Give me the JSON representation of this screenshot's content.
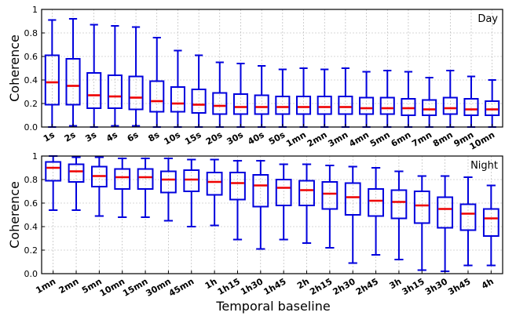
{
  "xlabel": "Temporal baseline",
  "colors": {
    "box": "#0000dd",
    "median": "#ee0000",
    "grid": "#b0b0b0"
  },
  "chart_data": [
    {
      "type": "box",
      "panel_label": "Day",
      "ylabel": "Coherence",
      "ylim": [
        0,
        1
      ],
      "yticks": [
        "0.0",
        "0.2",
        "0.4",
        "0.6",
        "0.8",
        "1"
      ],
      "grid": true,
      "categories": [
        "1s",
        "2s",
        "3s",
        "4s",
        "6s",
        "8s",
        "10s",
        "15s",
        "20s",
        "30s",
        "40s",
        "50s",
        "1mn",
        "2mn",
        "3mn",
        "4mn",
        "5mn",
        "6mn",
        "7mn",
        "8mn",
        "9mn",
        "10mn"
      ],
      "boxes": [
        {
          "min": 0.0,
          "q1": 0.19,
          "median": 0.38,
          "q3": 0.61,
          "max": 0.91
        },
        {
          "min": 0.01,
          "q1": 0.19,
          "median": 0.35,
          "q3": 0.58,
          "max": 0.92
        },
        {
          "min": 0.0,
          "q1": 0.16,
          "median": 0.27,
          "q3": 0.46,
          "max": 0.87
        },
        {
          "min": 0.01,
          "q1": 0.16,
          "median": 0.26,
          "q3": 0.44,
          "max": 0.86
        },
        {
          "min": 0.01,
          "q1": 0.15,
          "median": 0.25,
          "q3": 0.43,
          "max": 0.85
        },
        {
          "min": 0.0,
          "q1": 0.13,
          "median": 0.22,
          "q3": 0.39,
          "max": 0.76
        },
        {
          "min": 0.0,
          "q1": 0.13,
          "median": 0.2,
          "q3": 0.34,
          "max": 0.65
        },
        {
          "min": 0.0,
          "q1": 0.12,
          "median": 0.19,
          "q3": 0.32,
          "max": 0.61
        },
        {
          "min": 0.0,
          "q1": 0.11,
          "median": 0.18,
          "q3": 0.29,
          "max": 0.55
        },
        {
          "min": 0.0,
          "q1": 0.11,
          "median": 0.17,
          "q3": 0.28,
          "max": 0.54
        },
        {
          "min": 0.0,
          "q1": 0.11,
          "median": 0.17,
          "q3": 0.27,
          "max": 0.52
        },
        {
          "min": 0.0,
          "q1": 0.11,
          "median": 0.17,
          "q3": 0.26,
          "max": 0.49
        },
        {
          "min": 0.0,
          "q1": 0.11,
          "median": 0.17,
          "q3": 0.26,
          "max": 0.5
        },
        {
          "min": 0.0,
          "q1": 0.11,
          "median": 0.17,
          "q3": 0.26,
          "max": 0.49
        },
        {
          "min": 0.0,
          "q1": 0.11,
          "median": 0.17,
          "q3": 0.26,
          "max": 0.5
        },
        {
          "min": 0.0,
          "q1": 0.11,
          "median": 0.16,
          "q3": 0.25,
          "max": 0.47
        },
        {
          "min": 0.0,
          "q1": 0.11,
          "median": 0.16,
          "q3": 0.25,
          "max": 0.48
        },
        {
          "min": 0.0,
          "q1": 0.1,
          "median": 0.16,
          "q3": 0.24,
          "max": 0.47
        },
        {
          "min": 0.0,
          "q1": 0.1,
          "median": 0.15,
          "q3": 0.23,
          "max": 0.42
        },
        {
          "min": 0.0,
          "q1": 0.11,
          "median": 0.16,
          "q3": 0.25,
          "max": 0.48
        },
        {
          "min": 0.0,
          "q1": 0.1,
          "median": 0.15,
          "q3": 0.24,
          "max": 0.43
        },
        {
          "min": 0.0,
          "q1": 0.1,
          "median": 0.15,
          "q3": 0.22,
          "max": 0.4
        }
      ]
    },
    {
      "type": "box",
      "panel_label": "Night",
      "ylabel": "Coherence",
      "ylim": [
        0,
        1
      ],
      "yticks": [
        "0.0",
        "0.2",
        "0.4",
        "0.6",
        "0.8",
        "1"
      ],
      "grid": true,
      "categories": [
        "1mn",
        "2mn",
        "5mn",
        "10mn",
        "15mn",
        "30mn",
        "45mn",
        "1h",
        "1h15",
        "1h30",
        "1h45",
        "2h",
        "2h15",
        "2h30",
        "2h45",
        "3h",
        "3h15",
        "3h30",
        "3h45",
        "4h"
      ],
      "boxes": [
        {
          "min": 0.54,
          "q1": 0.79,
          "median": 0.9,
          "q3": 0.95,
          "max": 1.0
        },
        {
          "min": 0.54,
          "q1": 0.78,
          "median": 0.87,
          "q3": 0.93,
          "max": 0.99
        },
        {
          "min": 0.49,
          "q1": 0.74,
          "median": 0.83,
          "q3": 0.91,
          "max": 0.99
        },
        {
          "min": 0.48,
          "q1": 0.72,
          "median": 0.82,
          "q3": 0.89,
          "max": 0.98
        },
        {
          "min": 0.48,
          "q1": 0.72,
          "median": 0.82,
          "q3": 0.89,
          "max": 0.98
        },
        {
          "min": 0.45,
          "q1": 0.69,
          "median": 0.8,
          "q3": 0.87,
          "max": 0.98
        },
        {
          "min": 0.4,
          "q1": 0.7,
          "median": 0.8,
          "q3": 0.88,
          "max": 0.97
        },
        {
          "min": 0.41,
          "q1": 0.67,
          "median": 0.78,
          "q3": 0.86,
          "max": 0.97
        },
        {
          "min": 0.29,
          "q1": 0.63,
          "median": 0.77,
          "q3": 0.86,
          "max": 0.96
        },
        {
          "min": 0.21,
          "q1": 0.57,
          "median": 0.75,
          "q3": 0.84,
          "max": 0.96
        },
        {
          "min": 0.29,
          "q1": 0.58,
          "median": 0.73,
          "q3": 0.8,
          "max": 0.93
        },
        {
          "min": 0.26,
          "q1": 0.58,
          "median": 0.71,
          "q3": 0.79,
          "max": 0.93
        },
        {
          "min": 0.22,
          "q1": 0.55,
          "median": 0.68,
          "q3": 0.78,
          "max": 0.92
        },
        {
          "min": 0.09,
          "q1": 0.5,
          "median": 0.65,
          "q3": 0.77,
          "max": 0.91
        },
        {
          "min": 0.16,
          "q1": 0.49,
          "median": 0.62,
          "q3": 0.72,
          "max": 0.9
        },
        {
          "min": 0.12,
          "q1": 0.47,
          "median": 0.61,
          "q3": 0.71,
          "max": 0.87
        },
        {
          "min": 0.03,
          "q1": 0.43,
          "median": 0.58,
          "q3": 0.7,
          "max": 0.83
        },
        {
          "min": 0.02,
          "q1": 0.39,
          "median": 0.55,
          "q3": 0.65,
          "max": 0.83
        },
        {
          "min": 0.07,
          "q1": 0.37,
          "median": 0.51,
          "q3": 0.59,
          "max": 0.82
        },
        {
          "min": 0.07,
          "q1": 0.32,
          "median": 0.47,
          "q3": 0.55,
          "max": 0.75
        }
      ]
    }
  ]
}
